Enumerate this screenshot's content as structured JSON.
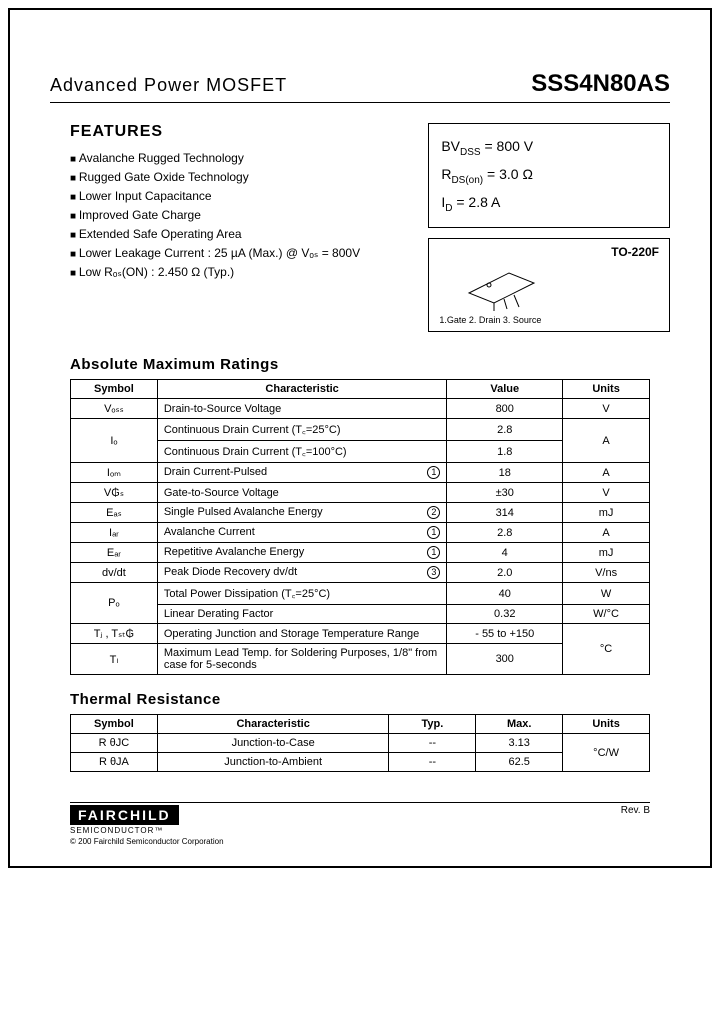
{
  "header": {
    "title": "Advanced Power MOSFET",
    "part_number": "SSS4N80AS"
  },
  "features": {
    "heading": "FEATURES",
    "items": [
      "Avalanche Rugged Technology",
      "Rugged Gate Oxide Technology",
      "Lower Input Capacitance",
      "Improved Gate Charge",
      "Extended Safe Operating Area",
      "Lower Leakage Current : 25 µA (Max.) @ Vₒₛ = 800V",
      "Low Rₒₛ(ON) : 2.450 Ω (Typ.)"
    ]
  },
  "key_params": {
    "bvdss_label": "BV",
    "bvdss_sub": "DSS",
    "bvdss_val": " = 800 V",
    "rdson_label": "R",
    "rdson_sub": "DS(on)",
    "rdson_val": " = 3.0 Ω",
    "id_label": "I",
    "id_sub": "D",
    "id_val": " = 2.8 A"
  },
  "package": {
    "name": "TO-220F",
    "pins": "1.Gate 2. Drain 3. Source"
  },
  "abs_max": {
    "heading": "Absolute Maximum Ratings",
    "columns": [
      "Symbol",
      "Characteristic",
      "Value",
      "Units"
    ],
    "rows": [
      {
        "symbol": "Vₒₛₛ",
        "char": "Drain-to-Source Voltage",
        "note": "",
        "value": "800",
        "units": "V",
        "rowspan_sym": 1,
        "rowspan_units": 1
      },
      {
        "symbol": "Iₒ",
        "char": "Continuous Drain Current (T꜀=25°C)",
        "note": "",
        "value": "2.8",
        "units": "A",
        "rowspan_sym": 2,
        "rowspan_units": 2
      },
      {
        "symbol": "",
        "char": "Continuous Drain Current (T꜀=100°C)",
        "note": "",
        "value": "1.8",
        "units": "",
        "rowspan_sym": 0,
        "rowspan_units": 0
      },
      {
        "symbol": "Iₒₘ",
        "char": "Drain Current-Pulsed",
        "note": "1",
        "value": "18",
        "units": "A",
        "rowspan_sym": 1,
        "rowspan_units": 1
      },
      {
        "symbol": "V₲ₛ",
        "char": "Gate-to-Source Voltage",
        "note": "",
        "value": "±30",
        "units": "V",
        "rowspan_sym": 1,
        "rowspan_units": 1
      },
      {
        "symbol": "Eₐₛ",
        "char": "Single Pulsed Avalanche Energy",
        "note": "2",
        "value": "314",
        "units": "mJ",
        "rowspan_sym": 1,
        "rowspan_units": 1
      },
      {
        "symbol": "Iₐᵣ",
        "char": "Avalanche Current",
        "note": "1",
        "value": "2.8",
        "units": "A",
        "rowspan_sym": 1,
        "rowspan_units": 1
      },
      {
        "symbol": "Eₐᵣ",
        "char": "Repetitive Avalanche Energy",
        "note": "1",
        "value": "4",
        "units": "mJ",
        "rowspan_sym": 1,
        "rowspan_units": 1
      },
      {
        "symbol": "dv/dt",
        "char": "Peak Diode Recovery dv/dt",
        "note": "3",
        "value": "2.0",
        "units": "V/ns",
        "rowspan_sym": 1,
        "rowspan_units": 1
      },
      {
        "symbol": "Pₒ",
        "char": "Total Power Dissipation (T꜀=25°C)",
        "note": "",
        "value": "40",
        "units": "W",
        "rowspan_sym": 2,
        "rowspan_units": 1
      },
      {
        "symbol": "",
        "char": "Linear Derating Factor",
        "note": "",
        "value": "0.32",
        "units": "W/°C",
        "rowspan_sym": 0,
        "rowspan_units": 1
      },
      {
        "symbol": "Tⱼ , Tₛₜ₲",
        "char": "Operating Junction and Storage Temperature Range",
        "note": "",
        "value": "- 55 to +150",
        "units": "°C",
        "rowspan_sym": 1,
        "rowspan_units": 2
      },
      {
        "symbol": "Tₗ",
        "char": "Maximum Lead Temp. for Soldering Purposes, 1/8\" from case for 5-seconds",
        "note": "",
        "value": "300",
        "units": "",
        "rowspan_sym": 1,
        "rowspan_units": 0
      }
    ]
  },
  "thermal": {
    "heading": "Thermal Resistance",
    "columns": [
      "Symbol",
      "Characteristic",
      "Typ.",
      "Max.",
      "Units"
    ],
    "rows": [
      {
        "symbol": "R θJC",
        "char": "Junction-to-Case",
        "typ": "--",
        "max": "3.13",
        "units": "°C/W",
        "rowspan_units": 2
      },
      {
        "symbol": "R θJA",
        "char": "Junction-to-Ambient",
        "typ": "--",
        "max": "62.5",
        "units": "",
        "rowspan_units": 0
      }
    ]
  },
  "footer": {
    "logo": "FAIRCHILD",
    "logo_sub": "SEMICONDUCTOR™",
    "copyright": "© 200 Fairchild Semiconductor Corporation",
    "rev": "Rev. B"
  },
  "colors": {
    "text": "#000000",
    "bg": "#ffffff",
    "border": "#000000"
  }
}
